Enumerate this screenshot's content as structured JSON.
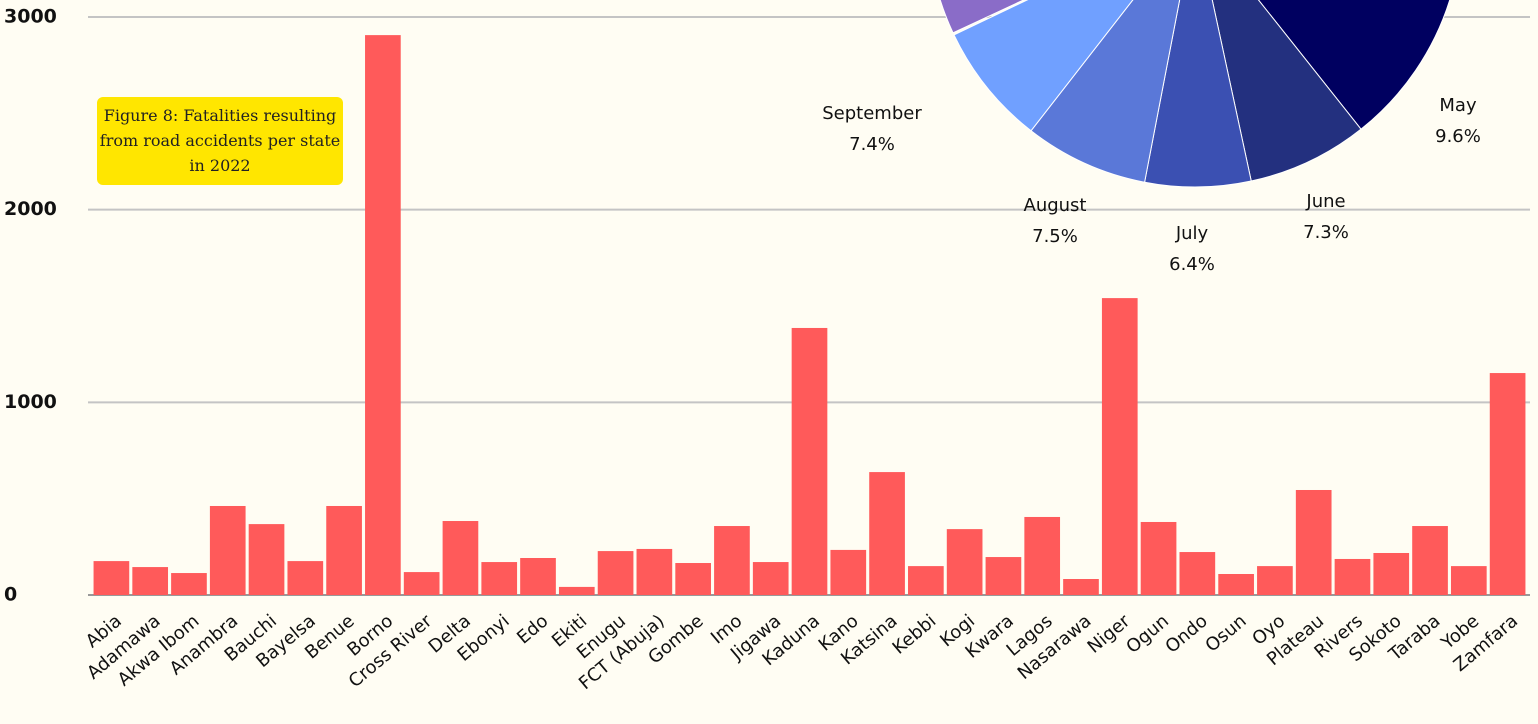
{
  "chart_data": [
    {
      "type": "bar",
      "annotation": "Figure 8: Fatalities resulting from road accidents per state in 2022",
      "categories": [
        "Abia",
        "Adamawa",
        "Akwa Ibom",
        "Anambra",
        "Bauchi",
        "Bayelsa",
        "Benue",
        "Borno",
        "Cross River",
        "Delta",
        "Ebonyi",
        "Edo",
        "Ekiti",
        "Enugu",
        "FCT (Abuja)",
        "Gombe",
        "Imo",
        "Jigawa",
        "Kaduna",
        "Kano",
        "Katsina",
        "Kebbi",
        "Kogi",
        "Kwara",
        "Lagos",
        "Nasarawa",
        "Niger",
        "Ogun",
        "Ondo",
        "Osun",
        "Oyo",
        "Plateau",
        "Rivers",
        "Sokoto",
        "Taraba",
        "Yobe",
        "Zamfara"
      ],
      "values": [
        176,
        145,
        114,
        462,
        368,
        176,
        462,
        2906,
        119,
        384,
        171,
        192,
        42,
        228,
        239,
        166,
        358,
        171,
        1386,
        234,
        638,
        150,
        342,
        197,
        405,
        83,
        1541,
        379,
        223,
        109,
        150,
        545,
        187,
        218,
        358,
        150,
        1152
      ],
      "color": "#ff5a5a",
      "ylim": [
        0,
        3000
      ],
      "yticks": [
        0,
        1000,
        2000,
        3000
      ],
      "grid": true
    },
    {
      "type": "pie",
      "categories": [
        "May",
        "June",
        "July",
        "August",
        "September"
      ],
      "values": [
        9.6,
        7.3,
        6.4,
        7.5,
        7.4
      ],
      "value_labels": [
        "9.6%",
        "7.3%",
        "6.4%",
        "7.5%",
        "7.4%"
      ],
      "colors": [
        "#000060",
        "#23307f",
        "#3b50b2",
        "#5a78d8",
        "#70a0ff"
      ]
    }
  ]
}
